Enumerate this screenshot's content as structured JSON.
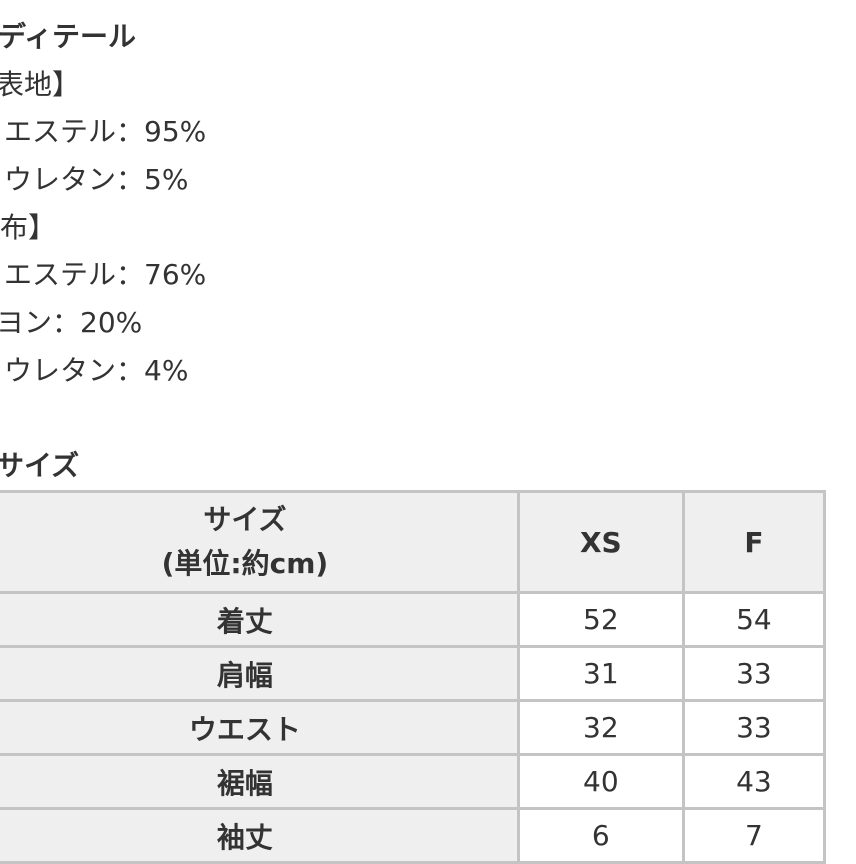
{
  "details_heading": "ディテール",
  "outer_fabric_label": "表地】",
  "outer_fabric": [
    "エステル：95%",
    "ウレタン：5%"
  ],
  "lining_label": "布】",
  "lining": [
    "エステル：76%",
    "ヨン：20%",
    "ウレタン：4%"
  ],
  "size_heading": "サイズ",
  "table": {
    "header_line1": "サイズ",
    "header_line2": "(単位:約cm)",
    "columns": [
      "XS",
      "F"
    ],
    "rows": [
      {
        "label": "着丈",
        "values": [
          "52",
          "54"
        ]
      },
      {
        "label": "肩幅",
        "values": [
          "31",
          "33"
        ]
      },
      {
        "label": "ウエスト",
        "values": [
          "32",
          "33"
        ]
      },
      {
        "label": "裾幅",
        "values": [
          "40",
          "43"
        ]
      },
      {
        "label": "袖丈",
        "values": [
          "6",
          "7"
        ]
      }
    ]
  }
}
